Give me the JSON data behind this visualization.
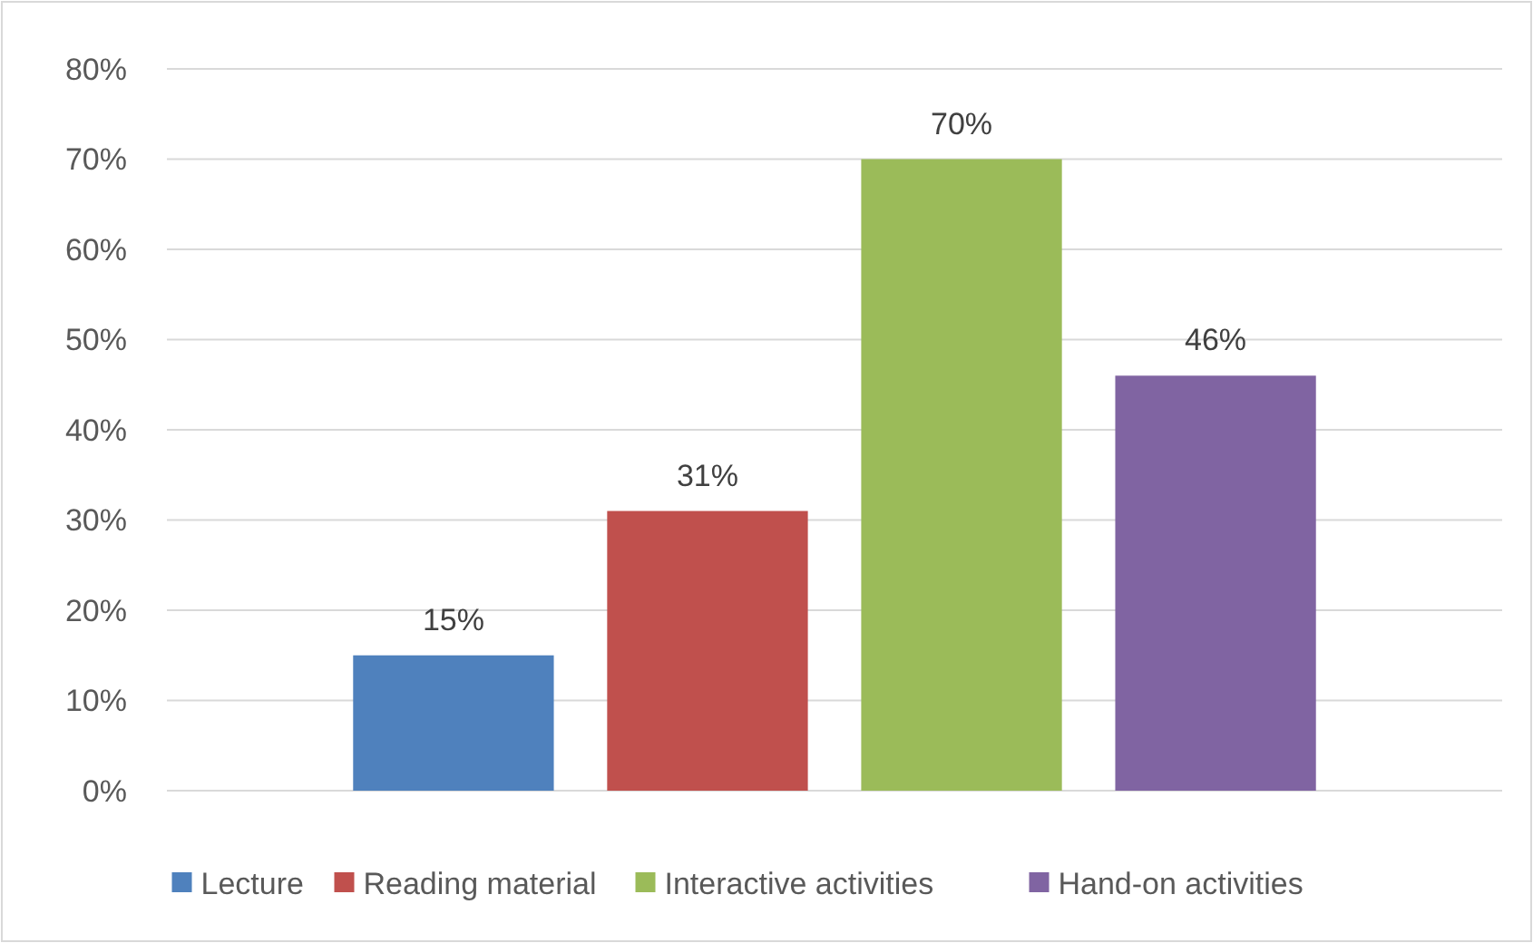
{
  "chart_data": {
    "type": "bar",
    "categories": [
      null
    ],
    "series": [
      {
        "name": "Lecture",
        "color": "#4f81bd",
        "values": [
          15
        ],
        "value_labels": [
          "15%"
        ]
      },
      {
        "name": "Reading material",
        "color": "#c0504d",
        "values": [
          31
        ],
        "value_labels": [
          "31%"
        ]
      },
      {
        "name": "Interactive activities",
        "color": "#9bbb59",
        "values": [
          70
        ],
        "value_labels": [
          "70%"
        ]
      },
      {
        "name": "Hand-on activities",
        "color": "#8064a2",
        "values": [
          46
        ],
        "value_labels": [
          "46%"
        ]
      }
    ],
    "ylim": [
      0,
      80
    ],
    "yticks": [
      {
        "value": 0,
        "label": "0%"
      },
      {
        "value": 10,
        "label": "10%"
      },
      {
        "value": 20,
        "label": "20%"
      },
      {
        "value": 30,
        "label": "30%"
      },
      {
        "value": 40,
        "label": "40%"
      },
      {
        "value": 50,
        "label": "50%"
      },
      {
        "value": 60,
        "label": "60%"
      },
      {
        "value": 70,
        "label": "70%"
      },
      {
        "value": 80,
        "label": "80%"
      }
    ],
    "grid": "y",
    "legend": "bottom"
  }
}
